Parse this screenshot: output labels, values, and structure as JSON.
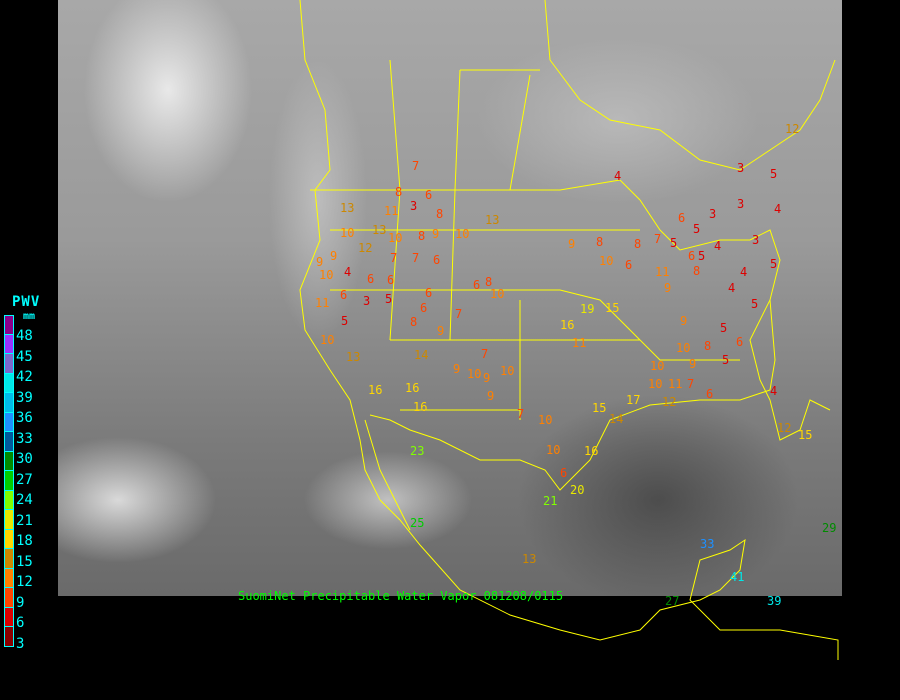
{
  "caption": "SuomiNet Precipitable Water Vapor 081208/0115",
  "legend": {
    "title": "PWV",
    "unit": "mm",
    "labels": [
      "48",
      "45",
      "42",
      "39",
      "36",
      "33",
      "30",
      "27",
      "24",
      "21",
      "18",
      "15",
      "12",
      "9",
      "6",
      "3"
    ],
    "colors": [
      "#8b008b",
      "#9933ff",
      "#7b68cc",
      "#00e8e8",
      "#00bce8",
      "#1e90ff",
      "#005a9c",
      "#008b00",
      "#00cc00",
      "#80ff00",
      "#e8e800",
      "#ffd700",
      "#cc8800",
      "#ff8000",
      "#ff4500",
      "#dd0000",
      "#8b0000"
    ]
  },
  "map": {
    "background": "infrared satellite imagery",
    "border_color": "#ffff00",
    "stations": [
      {
        "v": "7"
      },
      {
        "v": "13"
      },
      {
        "v": "6"
      },
      {
        "v": "8"
      },
      {
        "v": "3"
      },
      {
        "v": "11"
      },
      {
        "v": "8"
      },
      {
        "v": "13"
      },
      {
        "v": "10"
      },
      {
        "v": "13"
      },
      {
        "v": "10"
      },
      {
        "v": "8"
      },
      {
        "v": "9"
      },
      {
        "v": "10"
      },
      {
        "v": "9"
      },
      {
        "v": "12"
      },
      {
        "v": "7"
      },
      {
        "v": "7"
      },
      {
        "v": "6"
      },
      {
        "v": "9"
      },
      {
        "v": "10"
      },
      {
        "v": "4"
      },
      {
        "v": "6"
      },
      {
        "v": "6"
      },
      {
        "v": "6"
      },
      {
        "v": "3"
      },
      {
        "v": "5"
      },
      {
        "v": "6"
      },
      {
        "v": "11"
      },
      {
        "v": "5"
      },
      {
        "v": "10"
      },
      {
        "v": "8"
      },
      {
        "v": "9"
      },
      {
        "v": "7"
      },
      {
        "v": "6"
      },
      {
        "v": "8"
      },
      {
        "v": "10"
      },
      {
        "v": "14"
      },
      {
        "v": "16"
      },
      {
        "v": "6"
      },
      {
        "v": "13"
      },
      {
        "v": "16"
      },
      {
        "v": "16"
      },
      {
        "v": "10"
      },
      {
        "v": "9"
      },
      {
        "v": "7"
      },
      {
        "v": "9"
      },
      {
        "v": "10"
      },
      {
        "v": "9"
      },
      {
        "v": "7"
      },
      {
        "v": "10"
      },
      {
        "v": "19"
      },
      {
        "v": "16"
      },
      {
        "v": "15"
      },
      {
        "v": "11"
      },
      {
        "v": "15"
      },
      {
        "v": "14"
      },
      {
        "v": "17"
      },
      {
        "v": "12"
      },
      {
        "v": "10"
      },
      {
        "v": "10"
      },
      {
        "v": "21"
      },
      {
        "v": "20"
      },
      {
        "v": "6"
      },
      {
        "v": "16"
      },
      {
        "v": "23"
      },
      {
        "v": "25"
      },
      {
        "v": "13"
      },
      {
        "v": "9"
      },
      {
        "v": "8"
      },
      {
        "v": "8"
      },
      {
        "v": "7"
      },
      {
        "v": "5"
      },
      {
        "v": "4"
      },
      {
        "v": "6"
      },
      {
        "v": "5"
      },
      {
        "v": "8"
      },
      {
        "v": "9"
      },
      {
        "v": "11"
      },
      {
        "v": "10"
      },
      {
        "v": "6"
      },
      {
        "v": "9"
      },
      {
        "v": "5"
      },
      {
        "v": "6"
      },
      {
        "v": "10"
      },
      {
        "v": "11"
      },
      {
        "v": "9"
      },
      {
        "v": "7"
      },
      {
        "v": "5"
      },
      {
        "v": "4"
      },
      {
        "v": "4"
      },
      {
        "v": "3"
      },
      {
        "v": "3"
      },
      {
        "v": "3"
      },
      {
        "v": "4"
      },
      {
        "v": "6"
      },
      {
        "v": "5"
      },
      {
        "v": "3"
      },
      {
        "v": "4"
      },
      {
        "v": "5"
      },
      {
        "v": "5"
      },
      {
        "v": "4"
      },
      {
        "v": "12"
      },
      {
        "v": "5"
      },
      {
        "v": "6"
      },
      {
        "v": "8"
      },
      {
        "v": "10"
      },
      {
        "v": "12"
      },
      {
        "v": "15"
      },
      {
        "v": "27"
      },
      {
        "v": "33"
      },
      {
        "v": "39"
      },
      {
        "v": "41"
      },
      {
        "v": "29"
      }
    ]
  }
}
